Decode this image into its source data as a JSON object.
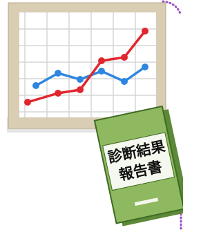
{
  "book": {
    "title_line1": "診断結果",
    "title_line2": "報告書"
  }
}
